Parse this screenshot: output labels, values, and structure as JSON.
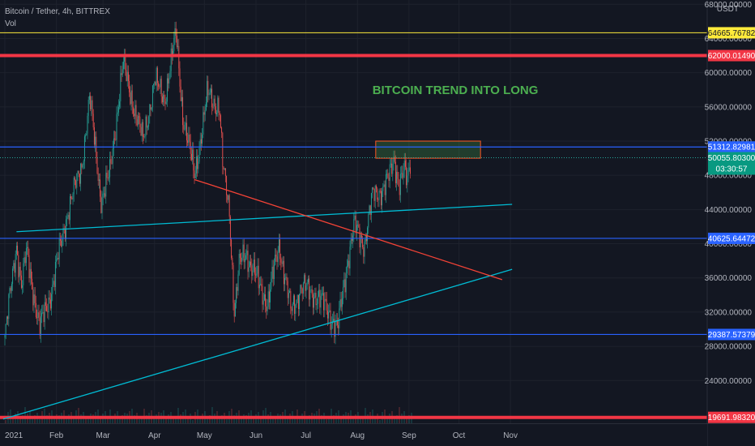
{
  "header": {
    "symbol": "Bitcoin / Tether, 4h, BITTREX",
    "indicator": "Vol"
  },
  "currency": "USDT",
  "annotation": "BITCOIN TREND INTO LONG",
  "colors": {
    "background": "#131722",
    "grid": "#1e222d",
    "bull": "#26a69a",
    "bear": "#ef5350",
    "support_red": "#f23645",
    "blue_line": "#2962ff",
    "yellow_line": "#ffeb3b",
    "trend_cyan": "#00bcd4",
    "trend_red": "#f44336",
    "annotation_text": "#4caf50",
    "axis_text": "#b2b5be",
    "current_price_bg": "#089981"
  },
  "chart_data": {
    "type": "candlestick",
    "title": "",
    "xlabel": "",
    "ylabel": "USDT",
    "ylim": [
      19000,
      68500
    ],
    "x_ticks": [
      "2021",
      "Feb",
      "Mar",
      "Apr",
      "May",
      "Jun",
      "Jul",
      "Aug",
      "Sep",
      "Oct",
      "Nov"
    ],
    "y_ticks": [
      24000,
      28000,
      32000,
      36000,
      40000,
      44000,
      48000,
      52000,
      56000,
      60000,
      64000,
      68000
    ],
    "y_tick_labels": [
      "24000.00000",
      "28000.00000",
      "32000.00000",
      "36000.00000",
      "40000.00000",
      "44000.00000",
      "48000.00000",
      "52000.00000",
      "56000.00000",
      "60000.00000",
      "64000.00000",
      "68000.00000"
    ],
    "price_path": [
      {
        "date": "2021-01-01",
        "price": 29000
      },
      {
        "date": "2021-01-08",
        "price": 40000
      },
      {
        "date": "2021-01-11",
        "price": 35000
      },
      {
        "date": "2021-01-14",
        "price": 39000
      },
      {
        "date": "2021-01-22",
        "price": 30000
      },
      {
        "date": "2021-01-29",
        "price": 34500
      },
      {
        "date": "2021-02-08",
        "price": 44000
      },
      {
        "date": "2021-02-16",
        "price": 49000
      },
      {
        "date": "2021-02-21",
        "price": 57000
      },
      {
        "date": "2021-02-28",
        "price": 45000
      },
      {
        "date": "2021-03-05",
        "price": 48000
      },
      {
        "date": "2021-03-13",
        "price": 61000
      },
      {
        "date": "2021-03-25",
        "price": 52000
      },
      {
        "date": "2021-04-01",
        "price": 59000
      },
      {
        "date": "2021-04-07",
        "price": 57000
      },
      {
        "date": "2021-04-14",
        "price": 64500
      },
      {
        "date": "2021-04-18",
        "price": 55000
      },
      {
        "date": "2021-04-25",
        "price": 48000
      },
      {
        "date": "2021-05-03",
        "price": 57500
      },
      {
        "date": "2021-05-10",
        "price": 56000
      },
      {
        "date": "2021-05-12",
        "price": 49000
      },
      {
        "date": "2021-05-16",
        "price": 44000
      },
      {
        "date": "2021-05-19",
        "price": 32000
      },
      {
        "date": "2021-05-22",
        "price": 37500
      },
      {
        "date": "2021-05-26",
        "price": 39000
      },
      {
        "date": "2021-06-01",
        "price": 36000
      },
      {
        "date": "2021-06-08",
        "price": 33000
      },
      {
        "date": "2021-06-15",
        "price": 40000
      },
      {
        "date": "2021-06-22",
        "price": 32000
      },
      {
        "date": "2021-06-28",
        "price": 35000
      },
      {
        "date": "2021-07-07",
        "price": 34000
      },
      {
        "date": "2021-07-15",
        "price": 32000
      },
      {
        "date": "2021-07-20",
        "price": 29800
      },
      {
        "date": "2021-07-26",
        "price": 38000
      },
      {
        "date": "2021-07-30",
        "price": 42000
      },
      {
        "date": "2021-08-05",
        "price": 40000
      },
      {
        "date": "2021-08-10",
        "price": 45500
      },
      {
        "date": "2021-08-16",
        "price": 46500
      },
      {
        "date": "2021-08-20",
        "price": 47500
      },
      {
        "date": "2021-08-23",
        "price": 50000
      },
      {
        "date": "2021-08-26",
        "price": 47000
      },
      {
        "date": "2021-08-29",
        "price": 48500
      },
      {
        "date": "2021-08-31",
        "price": 47000
      },
      {
        "date": "2021-09-02",
        "price": 50055
      }
    ],
    "horizontal_levels": [
      {
        "value": 64665.76782,
        "label": "64665.76782",
        "color": "#ffeb3b",
        "width": 1
      },
      {
        "value": 62000.0149,
        "label": "62000.01490",
        "color": "#f23645",
        "width": 4
      },
      {
        "value": 51312.82981,
        "label": "51312.82981",
        "color": "#2962ff",
        "width": 1.2
      },
      {
        "value": 40625.64472,
        "label": "40625.64472",
        "color": "#2962ff",
        "width": 1.2
      },
      {
        "value": 29387.57379,
        "label": "29387.57379",
        "color": "#2962ff",
        "width": 1.2
      },
      {
        "value": 19691.9832,
        "label": "19691.98320",
        "color": "#f23645",
        "width": 4
      }
    ],
    "current_price": {
      "value": 50055.803,
      "label": "50055.80300",
      "countdown": "03:30:57"
    },
    "trend_lines": [
      {
        "from": {
          "date": "2021-01-08",
          "price": 41400
        },
        "to": {
          "date": "2021-11-02",
          "price": 44600
        },
        "color": "#00bcd4"
      },
      {
        "from": {
          "date": "2020-12-31",
          "price": 19500
        },
        "to": {
          "date": "2021-11-02",
          "price": 37000
        },
        "color": "#00bcd4"
      },
      {
        "from": {
          "date": "2021-04-25",
          "price": 47500
        },
        "to": {
          "date": "2021-10-27",
          "price": 35800
        },
        "color": "#f44336"
      }
    ],
    "target_zone": {
      "date_from": "2021-08-12",
      "date_to": "2021-10-14",
      "price_low": 50000,
      "price_high": 52000
    }
  }
}
